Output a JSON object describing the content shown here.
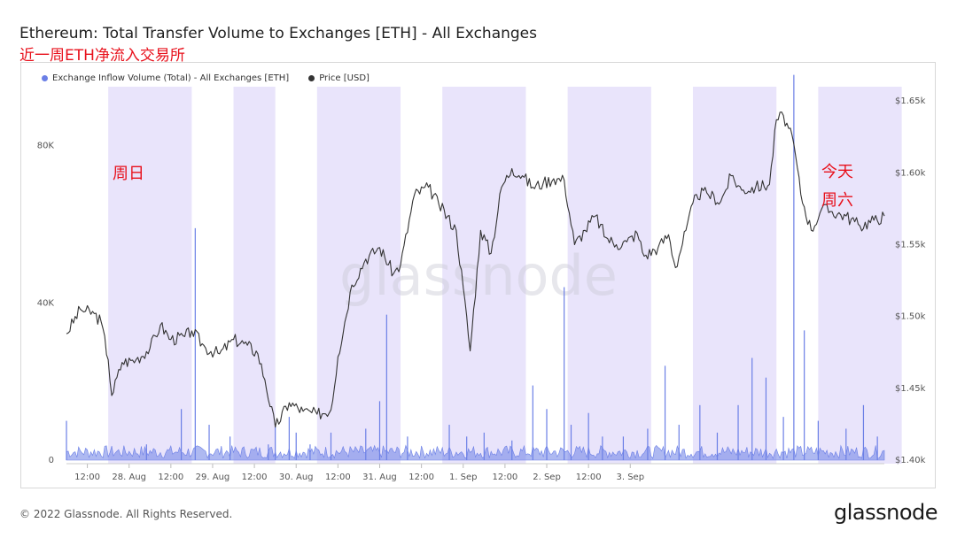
{
  "header": {
    "title": "Ethereum: Total Transfer Volume to Exchanges [ETH] - All Exchanges",
    "subtitle": "近一周ETH净流入交易所"
  },
  "legend": {
    "inflow_label": "Exchange Inflow Volume (Total) - All Exchanges [ETH]",
    "price_label": "Price [USD]"
  },
  "annotations": {
    "sunday": "周日",
    "today_line1": "今天",
    "today_line2": "周六"
  },
  "watermark": "glassnode",
  "footer": {
    "copyright": "© 2022 Glassnode. All Rights Reserved.",
    "brand": "glassnode"
  },
  "colors": {
    "inflow": "#6b7fe6",
    "price": "#333333",
    "weekend_band": "#e9e4fb",
    "annotation": "#e8101b"
  },
  "chart_data": {
    "type": "line",
    "x_axis": {
      "ticks": [
        "12:00",
        "28. Aug",
        "12:00",
        "29. Aug",
        "12:00",
        "30. Aug",
        "12:00",
        "31. Aug",
        "12:00",
        "1. Sep",
        "12:00",
        "2. Sep",
        "12:00",
        "3. Sep"
      ]
    },
    "y_left": {
      "label": "",
      "ticks": [
        "0",
        "40K",
        "80K"
      ],
      "range": [
        0,
        95000
      ]
    },
    "y_right": {
      "label": "",
      "ticks": [
        "$1.40k",
        "$1.45k",
        "$1.50k",
        "$1.55k",
        "$1.60k",
        "$1.65k"
      ],
      "range": [
        1400,
        1660
      ]
    },
    "grid": false,
    "weekend_bands_hours": [
      [
        12,
        36
      ],
      [
        48,
        60
      ],
      [
        72,
        96
      ],
      [
        108,
        132
      ],
      [
        144,
        168
      ],
      [
        180,
        204
      ],
      [
        216,
        240
      ]
    ],
    "series": [
      {
        "name": "Price [USD]",
        "axis": "right",
        "points_hours_usd": [
          [
            0,
            1488
          ],
          [
            4,
            1505
          ],
          [
            8,
            1502
          ],
          [
            10,
            1496
          ],
          [
            12,
            1470
          ],
          [
            13,
            1445
          ],
          [
            16,
            1468
          ],
          [
            20,
            1470
          ],
          [
            24,
            1478
          ],
          [
            27,
            1494
          ],
          [
            30,
            1484
          ],
          [
            34,
            1486
          ],
          [
            36,
            1490
          ],
          [
            40,
            1478
          ],
          [
            44,
            1474
          ],
          [
            48,
            1484
          ],
          [
            52,
            1480
          ],
          [
            55,
            1474
          ],
          [
            57,
            1456
          ],
          [
            60,
            1423
          ],
          [
            64,
            1440
          ],
          [
            68,
            1434
          ],
          [
            72,
            1432
          ],
          [
            76,
            1435
          ],
          [
            78,
            1472
          ],
          [
            82,
            1522
          ],
          [
            86,
            1540
          ],
          [
            90,
            1548
          ],
          [
            94,
            1530
          ],
          [
            96,
            1536
          ],
          [
            100,
            1585
          ],
          [
            104,
            1590
          ],
          [
            107,
            1578
          ],
          [
            112,
            1560
          ],
          [
            114,
            1520
          ],
          [
            116,
            1476
          ],
          [
            119,
            1560
          ],
          [
            122,
            1544
          ],
          [
            125,
            1590
          ],
          [
            128,
            1603
          ],
          [
            131,
            1598
          ],
          [
            134,
            1590
          ],
          [
            137,
            1593
          ],
          [
            140,
            1596
          ],
          [
            143,
            1595
          ],
          [
            146,
            1550
          ],
          [
            149,
            1560
          ],
          [
            152,
            1570
          ],
          [
            155,
            1555
          ],
          [
            158,
            1550
          ],
          [
            161,
            1552
          ],
          [
            164,
            1558
          ],
          [
            166,
            1542
          ],
          [
            170,
            1548
          ],
          [
            173,
            1557
          ],
          [
            175,
            1534
          ],
          [
            178,
            1560
          ],
          [
            181,
            1585
          ],
          [
            184,
            1586
          ],
          [
            188,
            1580
          ],
          [
            191,
            1598
          ],
          [
            194,
            1588
          ],
          [
            198,
            1590
          ],
          [
            202,
            1592
          ],
          [
            204,
            1637
          ],
          [
            206,
            1640
          ],
          [
            209,
            1620
          ],
          [
            211,
            1585
          ],
          [
            214,
            1560
          ],
          [
            217,
            1575
          ],
          [
            220,
            1573
          ],
          [
            224,
            1570
          ],
          [
            228,
            1563
          ],
          [
            232,
            1567
          ],
          [
            235,
            1570
          ]
        ]
      },
      {
        "name": "Exchange Inflow Volume (Total) - All Exchanges [ETH]",
        "axis": "left",
        "baseline_eth": 1500,
        "spikes_hours_eth": [
          [
            0,
            10000
          ],
          [
            23,
            4000
          ],
          [
            33,
            13000
          ],
          [
            37,
            59000
          ],
          [
            41,
            9000
          ],
          [
            47,
            6000
          ],
          [
            58,
            4000
          ],
          [
            60,
            9000
          ],
          [
            64,
            11000
          ],
          [
            66,
            7000
          ],
          [
            70,
            4000
          ],
          [
            76,
            7000
          ],
          [
            86,
            8000
          ],
          [
            90,
            15000
          ],
          [
            92,
            37000
          ],
          [
            98,
            6000
          ],
          [
            110,
            9000
          ],
          [
            115,
            6000
          ],
          [
            120,
            7000
          ],
          [
            128,
            5000
          ],
          [
            134,
            19000
          ],
          [
            138,
            13000
          ],
          [
            143,
            44000
          ],
          [
            145,
            9000
          ],
          [
            150,
            12000
          ],
          [
            154,
            6000
          ],
          [
            160,
            6000
          ],
          [
            167,
            8000
          ],
          [
            172,
            24000
          ],
          [
            176,
            9000
          ],
          [
            182,
            14000
          ],
          [
            187,
            7000
          ],
          [
            193,
            14000
          ],
          [
            197,
            26000
          ],
          [
            201,
            21000
          ],
          [
            206,
            11000
          ],
          [
            209,
            98000
          ],
          [
            212,
            33000
          ],
          [
            216,
            10000
          ],
          [
            224,
            8000
          ],
          [
            229,
            14000
          ],
          [
            233,
            6000
          ]
        ]
      }
    ]
  }
}
